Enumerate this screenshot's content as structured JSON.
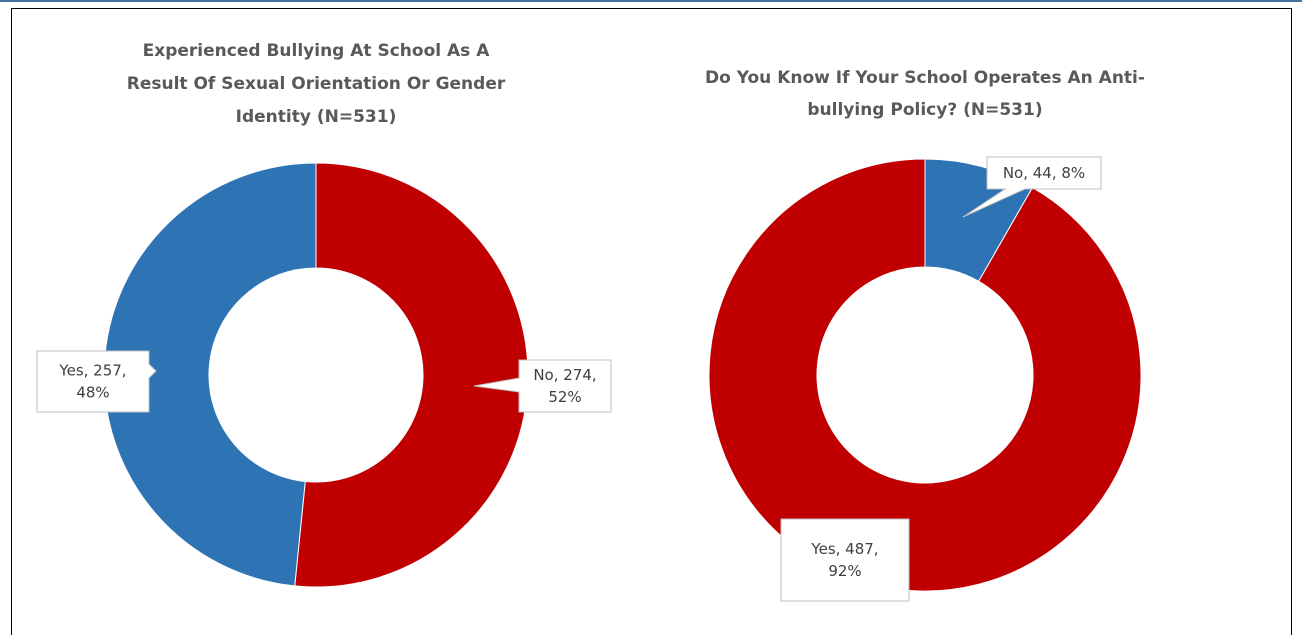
{
  "colors": {
    "yes": "#2e74b5",
    "no": "#c00000",
    "slice_border": "#ffffff"
  },
  "chart_data": [
    {
      "type": "pie",
      "donut": true,
      "title_lines": [
        "Experienced Bullying At School As A",
        "Result Of Sexual Orientation Or Gender",
        "Identity    (N=531)"
      ],
      "slices": [
        {
          "name": "No",
          "value": 274,
          "percent": "52%",
          "color": "#c00000",
          "label_lines": [
            "No, 274,",
            "52%"
          ]
        },
        {
          "name": "Yes",
          "value": 257,
          "percent": "48%",
          "color": "#2e74b5",
          "label_lines": [
            "Yes, 257,",
            "48%"
          ]
        }
      ]
    },
    {
      "type": "pie",
      "donut": true,
      "title_lines": [
        "Do You Know If Your School Operates An Anti-",
        "bullying Policy?     (N=531)"
      ],
      "slices": [
        {
          "name": "No",
          "value": 44,
          "percent": "8%",
          "color": "#2e74b5",
          "label_lines": [
            "No, 44, 8%"
          ]
        },
        {
          "name": "Yes",
          "value": 487,
          "percent": "92%",
          "color": "#c00000",
          "label_lines": [
            "Yes, 487,",
            "92%"
          ]
        }
      ]
    }
  ]
}
